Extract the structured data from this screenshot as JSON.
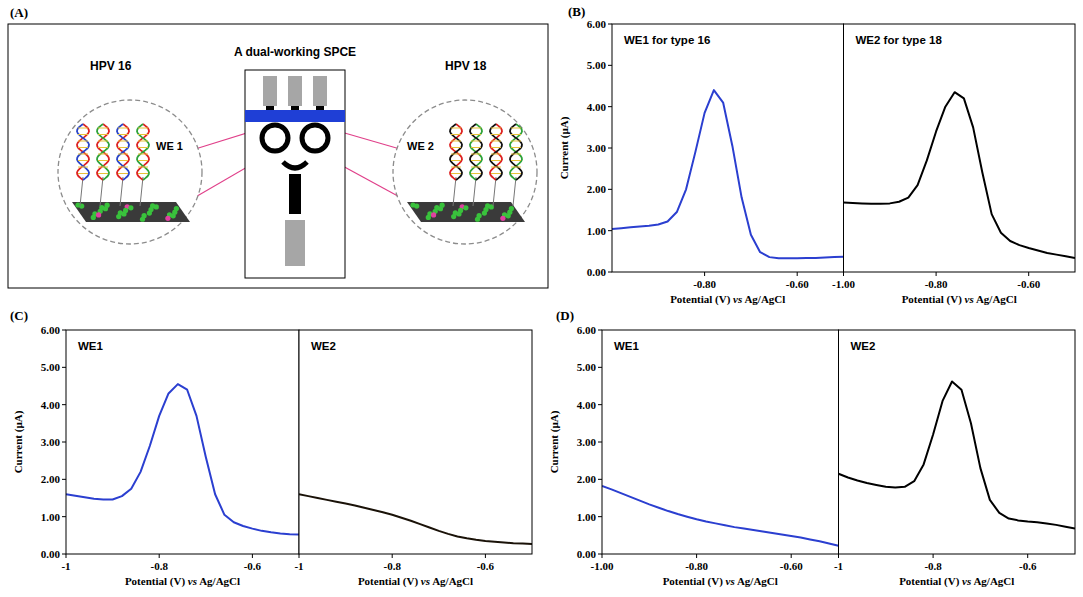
{
  "diagram": {
    "panel": "(A)",
    "left_title": "HPV 16",
    "center_title": "A dual-working SPCE",
    "right_title": "HPV 18",
    "left_electrode": "WE 1",
    "right_electrode": "WE 2"
  },
  "chart_data": [
    {
      "type": "line",
      "panel": "(B)",
      "title": "WE1 for type 16",
      "x_label": "Potential (V) vs Ag/AgCl",
      "y_label": "Current (µA)",
      "color": "#2b3fd0",
      "x": [
        -1.0,
        -0.98,
        -0.96,
        -0.94,
        -0.92,
        -0.9,
        -0.88,
        -0.86,
        -0.84,
        -0.82,
        -0.8,
        -0.78,
        -0.76,
        -0.74,
        -0.72,
        -0.7,
        -0.68,
        -0.66,
        -0.64,
        -0.62,
        -0.6,
        -0.58,
        -0.56,
        -0.54,
        -0.52,
        -0.5
      ],
      "values": [
        1.04,
        1.06,
        1.08,
        1.1,
        1.12,
        1.15,
        1.22,
        1.45,
        2.0,
        2.9,
        3.85,
        4.4,
        4.1,
        3.05,
        1.8,
        0.9,
        0.48,
        0.36,
        0.33,
        0.33,
        0.33,
        0.34,
        0.34,
        0.35,
        0.36,
        0.37
      ],
      "xlim": [
        -1.0,
        -0.5
      ],
      "xticks": [
        {
          "value": -0.8,
          "label": "-0.80"
        },
        {
          "value": -0.6,
          "label": "-0.60"
        }
      ],
      "ylim": [
        0,
        6
      ],
      "yticks": [
        {
          "value": 0,
          "label": "0.00"
        },
        {
          "value": 1,
          "label": "1.00"
        },
        {
          "value": 2,
          "label": "2.00"
        },
        {
          "value": 3,
          "label": "3.00"
        },
        {
          "value": 4,
          "label": "4.00"
        },
        {
          "value": 5,
          "label": "5.00"
        },
        {
          "value": 6,
          "label": "6.00"
        }
      ]
    },
    {
      "type": "line",
      "title": "WE2 for type 18",
      "x_label": "Potential (V) vs Ag/AgCl",
      "color": "#000000",
      "x": [
        -1.0,
        -0.98,
        -0.96,
        -0.94,
        -0.92,
        -0.9,
        -0.88,
        -0.86,
        -0.84,
        -0.82,
        -0.8,
        -0.78,
        -0.76,
        -0.74,
        -0.72,
        -0.7,
        -0.68,
        -0.66,
        -0.64,
        -0.62,
        -0.6,
        -0.58,
        -0.56,
        -0.54,
        -0.52,
        -0.5
      ],
      "values": [
        1.68,
        1.67,
        1.66,
        1.65,
        1.65,
        1.66,
        1.7,
        1.8,
        2.1,
        2.7,
        3.4,
        4.0,
        4.35,
        4.2,
        3.5,
        2.4,
        1.4,
        0.95,
        0.75,
        0.65,
        0.58,
        0.52,
        0.46,
        0.42,
        0.38,
        0.34
      ],
      "xlim": [
        -1.0,
        -0.5
      ],
      "xticks": [
        {
          "value": -1,
          "label": "-1.00"
        },
        {
          "value": -0.8,
          "label": "-0.80"
        },
        {
          "value": -0.6,
          "label": "-0.60"
        }
      ],
      "ylim": [
        0,
        6
      ],
      "tick_labels": "x"
    },
    {
      "type": "line",
      "panel": "(C)",
      "title": "WE1",
      "x_label": "Potential (V) vs Ag/AgCl",
      "y_label": "Current (µA)",
      "color": "#2b3fd0",
      "x": [
        -1.0,
        -0.98,
        -0.96,
        -0.94,
        -0.92,
        -0.9,
        -0.88,
        -0.86,
        -0.84,
        -0.82,
        -0.8,
        -0.78,
        -0.76,
        -0.74,
        -0.72,
        -0.7,
        -0.68,
        -0.66,
        -0.64,
        -0.62,
        -0.6,
        -0.58,
        -0.56,
        -0.54,
        -0.52,
        -0.5
      ],
      "values": [
        1.6,
        1.56,
        1.52,
        1.48,
        1.46,
        1.46,
        1.55,
        1.75,
        2.2,
        2.9,
        3.7,
        4.3,
        4.55,
        4.4,
        3.7,
        2.6,
        1.6,
        1.05,
        0.85,
        0.75,
        0.68,
        0.62,
        0.58,
        0.55,
        0.53,
        0.52
      ],
      "xlim": [
        -1.0,
        -0.5
      ],
      "xticks": [
        -1,
        -0.8,
        -0.6
      ],
      "ylim": [
        0,
        6
      ],
      "yticks": [
        {
          "value": 0,
          "label": "0.00"
        },
        {
          "value": 1,
          "label": "1.00"
        },
        {
          "value": 2,
          "label": "2.00"
        },
        {
          "value": 3,
          "label": "3.00"
        },
        {
          "value": 4,
          "label": "4.00"
        },
        {
          "value": 5,
          "label": "5.00"
        },
        {
          "value": 6,
          "label": "6.00"
        }
      ]
    },
    {
      "type": "line",
      "title": "WE2",
      "x_label": "Potential (V) vs Ag/AgCl",
      "color": "#1a1208",
      "x": [
        -1.0,
        -0.98,
        -0.96,
        -0.94,
        -0.92,
        -0.9,
        -0.88,
        -0.86,
        -0.84,
        -0.82,
        -0.8,
        -0.78,
        -0.76,
        -0.74,
        -0.72,
        -0.7,
        -0.68,
        -0.66,
        -0.64,
        -0.62,
        -0.6,
        -0.58,
        -0.56,
        -0.54,
        -0.52,
        -0.5
      ],
      "values": [
        1.6,
        1.55,
        1.5,
        1.45,
        1.4,
        1.35,
        1.3,
        1.24,
        1.18,
        1.12,
        1.05,
        0.97,
        0.89,
        0.8,
        0.71,
        0.62,
        0.54,
        0.47,
        0.42,
        0.38,
        0.35,
        0.33,
        0.31,
        0.29,
        0.28,
        0.27
      ],
      "xlim": [
        -1.0,
        -0.5
      ],
      "xticks": [
        -1,
        -0.8,
        -0.6
      ],
      "ylim": [
        0,
        6
      ],
      "tick_labels": "x"
    },
    {
      "type": "line",
      "panel": "(D)",
      "title": "WE1",
      "x_label": "Potential (V) vs Ag/AgCl",
      "y_label": "Current (µA)",
      "color": "#2b3fd0",
      "x": [
        -1.0,
        -0.98,
        -0.96,
        -0.94,
        -0.92,
        -0.9,
        -0.88,
        -0.86,
        -0.84,
        -0.82,
        -0.8,
        -0.78,
        -0.76,
        -0.74,
        -0.72,
        -0.7,
        -0.68,
        -0.66,
        -0.64,
        -0.62,
        -0.6,
        -0.58,
        -0.56,
        -0.54,
        -0.52,
        -0.5
      ],
      "values": [
        1.82,
        1.73,
        1.63,
        1.53,
        1.43,
        1.33,
        1.24,
        1.15,
        1.07,
        1.0,
        0.93,
        0.87,
        0.82,
        0.77,
        0.72,
        0.68,
        0.64,
        0.6,
        0.56,
        0.52,
        0.48,
        0.44,
        0.39,
        0.34,
        0.28,
        0.22
      ],
      "xlim": [
        -1.0,
        -0.5
      ],
      "xticks": [
        {
          "value": -1,
          "label": "-1.00"
        },
        {
          "value": -0.8,
          "label": "-0.80"
        },
        {
          "value": -0.6,
          "label": "-0.60"
        }
      ],
      "ylim": [
        0,
        6
      ],
      "yticks": [
        {
          "value": 0,
          "label": "0.00"
        },
        {
          "value": 1,
          "label": "1.00"
        },
        {
          "value": 2,
          "label": "2.00"
        },
        {
          "value": 3,
          "label": "3.00"
        },
        {
          "value": 4,
          "label": "4.00"
        },
        {
          "value": 5,
          "label": "5.00"
        },
        {
          "value": 6,
          "label": "6.00"
        }
      ]
    },
    {
      "type": "line",
      "title": "WE2",
      "x_label": "Potential (V) vs Ag/AgCl",
      "color": "#000000",
      "x": [
        -1.0,
        -0.98,
        -0.96,
        -0.94,
        -0.92,
        -0.9,
        -0.88,
        -0.86,
        -0.84,
        -0.82,
        -0.8,
        -0.78,
        -0.76,
        -0.74,
        -0.72,
        -0.7,
        -0.68,
        -0.66,
        -0.64,
        -0.62,
        -0.6,
        -0.58,
        -0.56,
        -0.54,
        -0.52,
        -0.5
      ],
      "values": [
        2.15,
        2.05,
        1.97,
        1.9,
        1.85,
        1.8,
        1.78,
        1.8,
        1.95,
        2.4,
        3.2,
        4.1,
        4.62,
        4.4,
        3.5,
        2.3,
        1.45,
        1.1,
        0.95,
        0.9,
        0.87,
        0.85,
        0.82,
        0.78,
        0.73,
        0.68
      ],
      "xlim": [
        -1.0,
        -0.5
      ],
      "xticks": [
        -1,
        -0.8,
        -0.6
      ],
      "ylim": [
        0,
        6
      ],
      "tick_labels": "x"
    }
  ]
}
